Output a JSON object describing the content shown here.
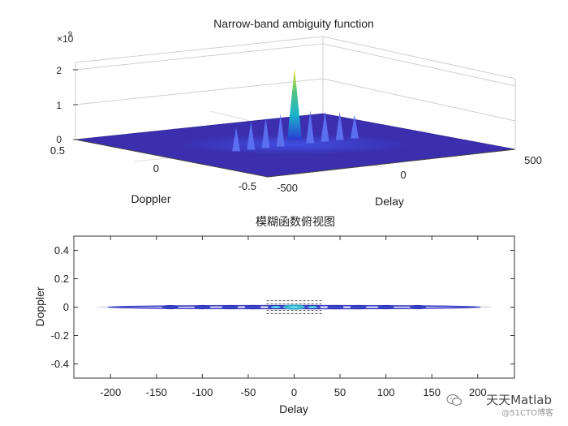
{
  "top_chart": {
    "title": "Narrow-band ambiguity function",
    "exponent_prefix": "×10",
    "exponent_power": "9",
    "xlabel": "Doppler",
    "ylabel": "Delay",
    "doppler_ticks": [
      "0.5",
      "0",
      "-0.5"
    ],
    "delay_ticks": [
      "-500",
      "0",
      "500"
    ],
    "z_ticks": [
      "2",
      "1",
      "0"
    ]
  },
  "bottom_chart": {
    "title": "模糊函数俯视图",
    "xlabel": "Delay",
    "ylabel": "Doppler",
    "x_ticks": [
      "-200",
      "-150",
      "-100",
      "-50",
      "0",
      "50",
      "100",
      "150",
      "200"
    ],
    "y_ticks": [
      "0.4",
      "0.2",
      "0",
      "-0.2",
      "-0.4"
    ]
  },
  "chart_data": [
    {
      "type": "surface",
      "title": "Narrow-band ambiguity function",
      "xlabel": "Doppler",
      "ylabel": "Delay",
      "zlabel": "",
      "doppler_range": [
        -0.5,
        0.5
      ],
      "delay_range": [
        -500,
        500
      ],
      "z_range": [
        0,
        2200000000.0
      ],
      "z_ticks": [
        0,
        1000000000.0,
        2000000000.0
      ],
      "colormap": "parula",
      "peak": {
        "delay": 0,
        "doppler": 0,
        "value": 2100000000.0
      },
      "sidelobes_along_delay": [
        {
          "delay": -240,
          "value": 220000000.0
        },
        {
          "delay": -180,
          "value": 260000000.0
        },
        {
          "delay": -120,
          "value": 280000000.0
        },
        {
          "delay": -60,
          "value": 300000000.0
        },
        {
          "delay": 60,
          "value": 300000000.0
        },
        {
          "delay": 120,
          "value": 280000000.0
        },
        {
          "delay": 180,
          "value": 260000000.0
        },
        {
          "delay": 240,
          "value": 220000000.0
        }
      ],
      "grid": true
    },
    {
      "type": "contour",
      "title": "模糊函数俯视图",
      "xlabel": "Delay",
      "ylabel": "Doppler",
      "xlim": [
        -240,
        240
      ],
      "ylim": [
        -0.5,
        0.5
      ],
      "x_ticks": [
        -200,
        -150,
        -100,
        -50,
        0,
        50,
        100,
        150,
        200
      ],
      "y_ticks": [
        0.4,
        0.2,
        0,
        -0.2,
        -0.4
      ],
      "ridge_extent": [
        -215,
        215
      ],
      "lobe_centers": [
        -135,
        -100,
        -70,
        -45,
        -20,
        0,
        20,
        45,
        70,
        100,
        135
      ],
      "grid": false
    }
  ],
  "watermark": {
    "main": "天天Matlab",
    "sub": "@51CTO博客"
  }
}
